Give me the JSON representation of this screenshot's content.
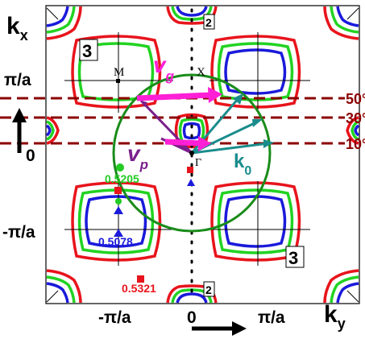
{
  "axes": {
    "kx_main": "k",
    "kx_sub": "x",
    "ky_main": "k",
    "ky_sub": "y",
    "pi_over_a": "π/a",
    "minus_pi_over_a": "-π/a",
    "zero": "0"
  },
  "points": {
    "M": "M",
    "X": "X",
    "Gamma": "Γ"
  },
  "vectors": {
    "vg_main": "v",
    "vg_sub": "g",
    "vp_main": "v",
    "vp_sub": "p",
    "k0_main": "k",
    "k0_sub": "0"
  },
  "angles": {
    "a50": "50°",
    "a30": "30°",
    "a10": "10°"
  },
  "values": {
    "v1": "0.5205",
    "v2": "0.5078",
    "v3": "0.5321"
  },
  "band_labels": {
    "b2_top": "2",
    "b2_bottom": "2",
    "b3_left": "3",
    "b3_right": "3"
  },
  "colors": {
    "contour_red": "#e8141c",
    "contour_green": "#22d322",
    "contour_blue": "#1a1adb",
    "circle": "#1a8c1a",
    "dashed": "#8b0000",
    "vg": "#ff1fd6",
    "vp": "#7a1f8c",
    "k0": "#1a8c8c",
    "value_green": "#22cc22",
    "value_blue": "#1a1adb",
    "value_red": "#e8141c"
  }
}
